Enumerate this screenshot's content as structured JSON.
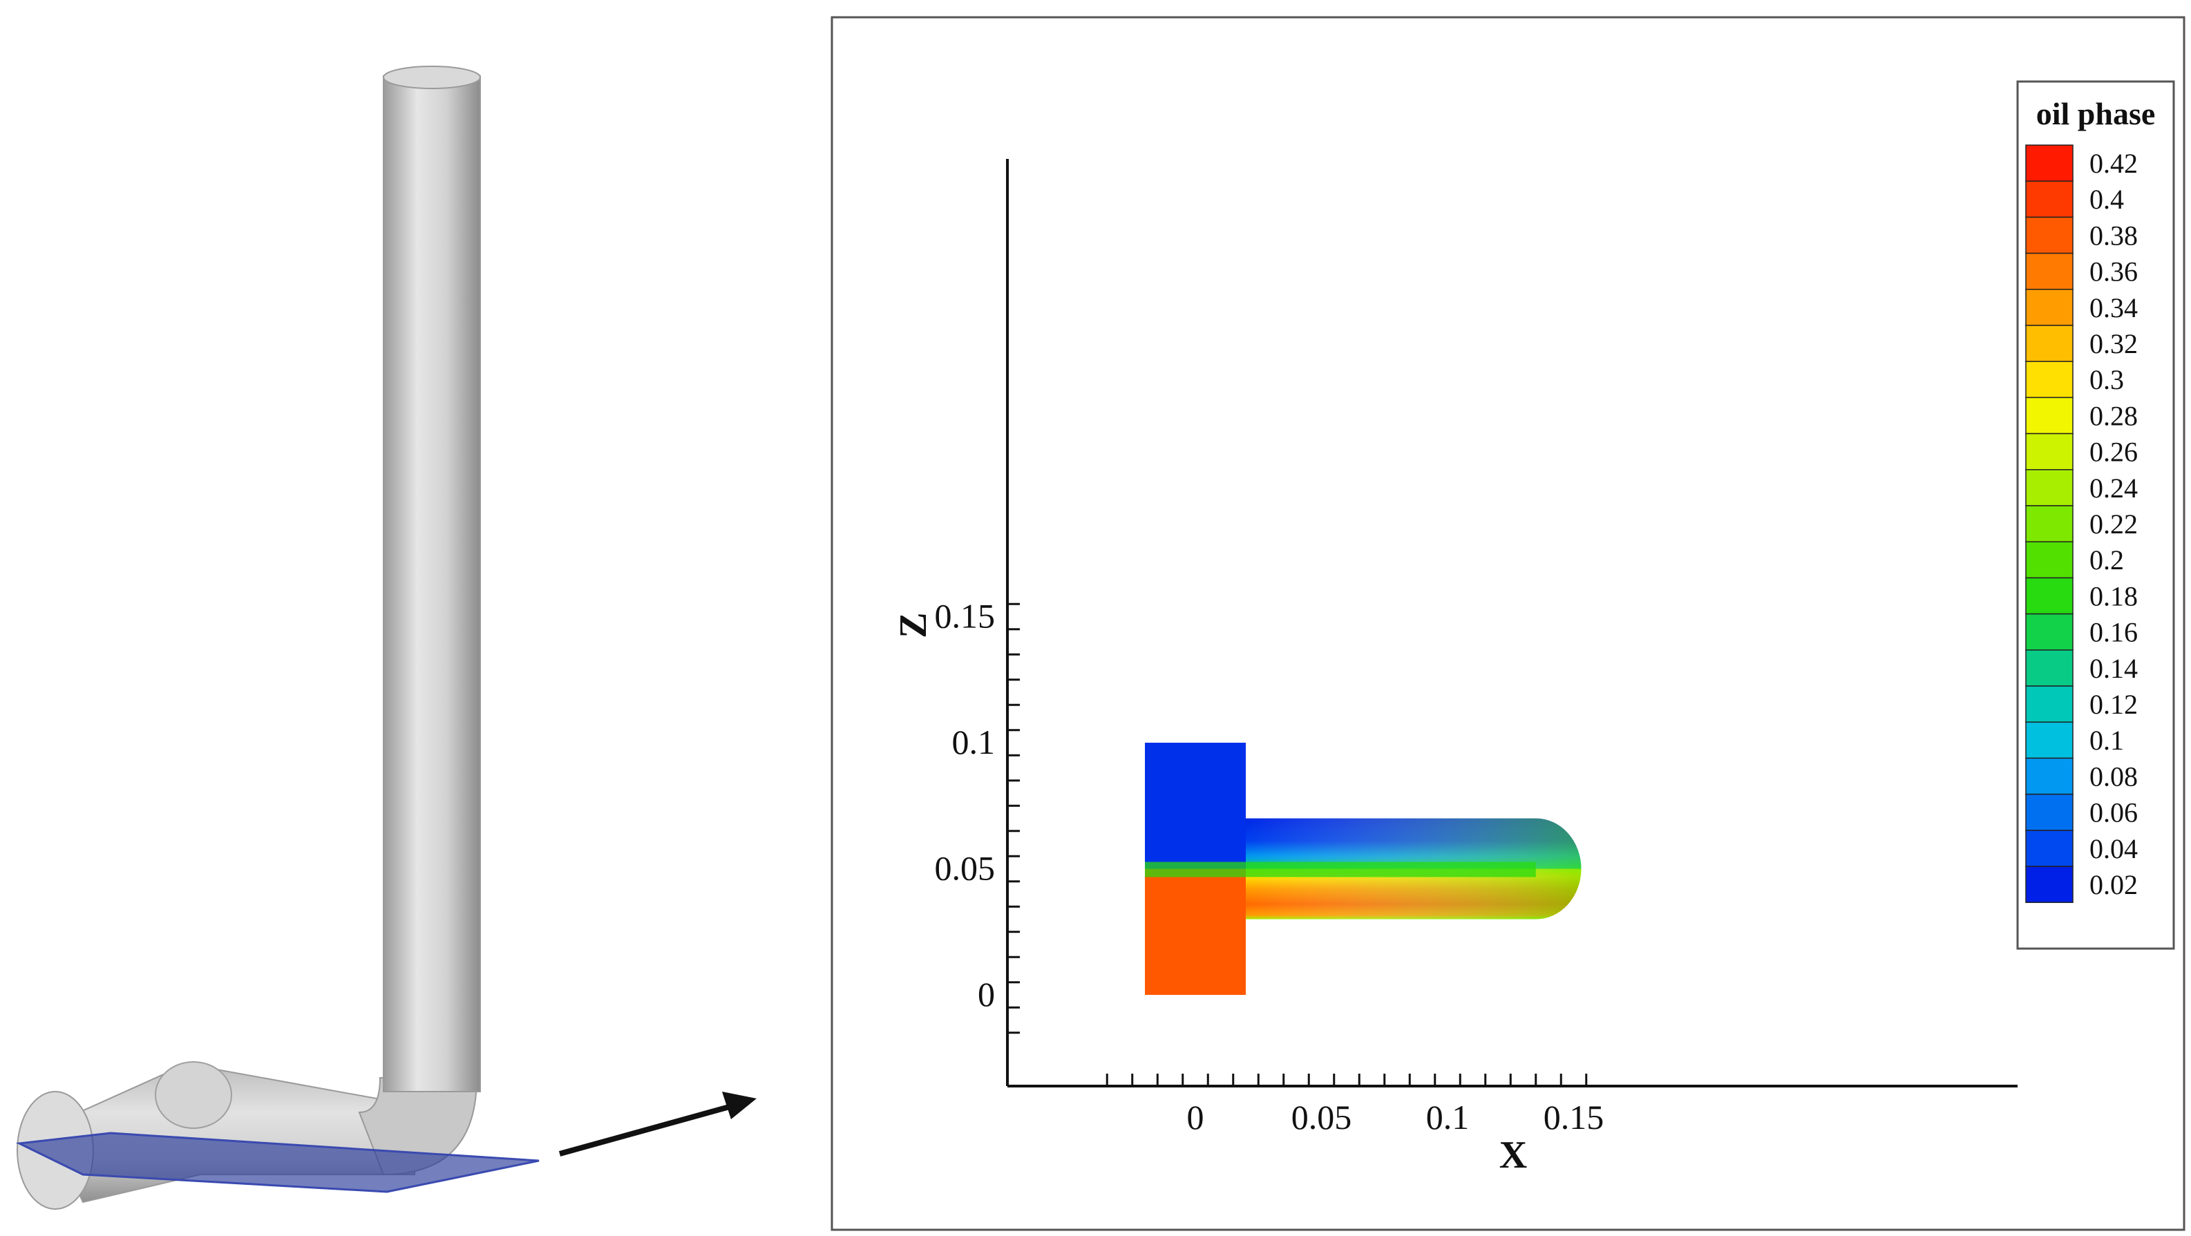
{
  "figure": {
    "left_panel": {
      "description_name": "pipe-geometry"
    },
    "plot": {
      "x_axis": {
        "title": "X",
        "tick_labels": [
          "0",
          "0.05",
          "0.1",
          "0.15"
        ],
        "range": [
          -0.038,
          0.163
        ]
      },
      "z_axis": {
        "title": "Z",
        "tick_labels": [
          "0",
          "0.05",
          "0.1",
          "0.15"
        ],
        "range": [
          -0.018,
          0.165
        ]
      },
      "legend": {
        "title": "oil phase",
        "levels": [
          "0.42",
          "0.4",
          "0.38",
          "0.36",
          "0.34",
          "0.32",
          "0.3",
          "0.28",
          "0.26",
          "0.24",
          "0.22",
          "0.2",
          "0.18",
          "0.16",
          "0.14",
          "0.12",
          "0.1",
          "0.08",
          "0.06",
          "0.04",
          "0.02"
        ],
        "colors": [
          "#ff1a00",
          "#ff3a00",
          "#ff5a00",
          "#ff7a00",
          "#ff9c00",
          "#ffbe00",
          "#ffe000",
          "#f2f700",
          "#cdf300",
          "#a8ee00",
          "#7ee800",
          "#52e000",
          "#28da10",
          "#12d24a",
          "#08cc86",
          "#00c8b8",
          "#00c0e0",
          "#0098f0",
          "#0070f0",
          "#0048f0",
          "#0020e8"
        ]
      }
    }
  },
  "chart_data": {
    "type": "heatmap",
    "title": "",
    "xlabel": "X",
    "ylabel": "Z",
    "xlim": [
      -0.038,
      0.163
    ],
    "ylim": [
      -0.018,
      0.165
    ],
    "x_ticks": [
      0,
      0.05,
      0.1,
      0.15
    ],
    "y_ticks": [
      0,
      0.05,
      0.1,
      0.15
    ],
    "colorbar": {
      "label": "oil phase",
      "min": 0.02,
      "max": 0.42,
      "step": 0.02
    },
    "regions": [
      {
        "name": "upper vertical inlet (x -0.02 to 0.02, z 0.05 to 0.1)",
        "value": 0.02
      },
      {
        "name": "lower vertical inlet (x -0.02 to 0.02, z 0 to 0.05)",
        "value": 0.39
      },
      {
        "name": "horizontal pipe upper layer (z 0.05 to 0.07)",
        "value_range": [
          0.02,
          0.16
        ]
      },
      {
        "name": "horizontal pipe interface (z ~0.05)",
        "value_range": [
          0.24,
          0.3
        ]
      },
      {
        "name": "horizontal pipe lower layer (z 0.03 to 0.05)",
        "value_range": [
          0.32,
          0.39
        ]
      }
    ]
  }
}
